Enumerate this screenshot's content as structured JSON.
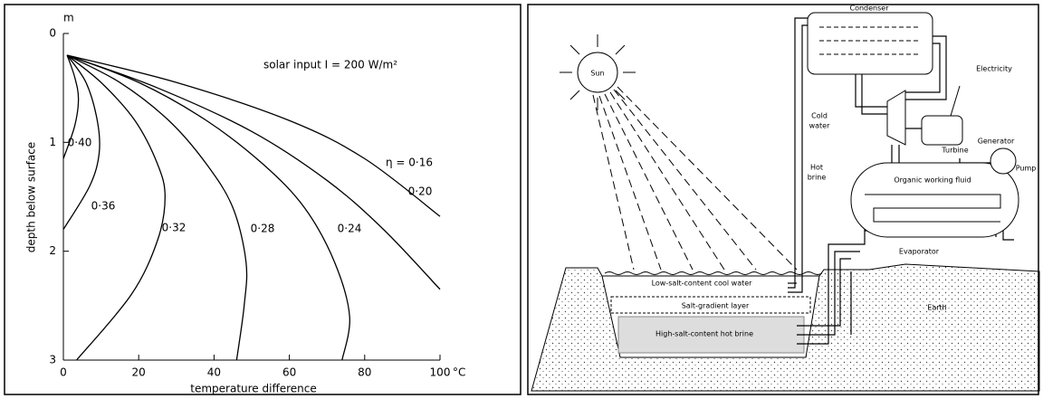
{
  "chart_data": {
    "type": "line",
    "annotation": "solar input I = 200 W/m²",
    "y_unit": "m",
    "x_unit": "°C",
    "xlabel": "temperature difference",
    "ylabel": "depth below surface",
    "xlim": [
      0,
      100
    ],
    "ylim": [
      3,
      0
    ],
    "xticks": [
      0,
      20,
      40,
      60,
      80,
      100
    ],
    "yticks": [
      0,
      1,
      2,
      3
    ],
    "color": "#000000",
    "series": [
      {
        "name": "0·40",
        "x": [
          1,
          3,
          4,
          3,
          0
        ],
        "values": [
          0.2,
          0.4,
          0.6,
          0.85,
          1.15
        ]
      },
      {
        "name": "0·36",
        "x": [
          1,
          6,
          9,
          9.5,
          7,
          0
        ],
        "values": [
          0.2,
          0.45,
          0.8,
          1.1,
          1.4,
          1.8
        ]
      },
      {
        "name": "0·32",
        "x": [
          1,
          10,
          19,
          25,
          27,
          25,
          18,
          3.5
        ],
        "values": [
          0.2,
          0.45,
          0.8,
          1.2,
          1.5,
          1.9,
          2.4,
          3
        ]
      },
      {
        "name": "0·28",
        "x": [
          1,
          15,
          28,
          38,
          45,
          48.5,
          48,
          46
        ],
        "values": [
          0.2,
          0.45,
          0.8,
          1.2,
          1.6,
          2.1,
          2.5,
          3
        ]
      },
      {
        "name": "0·24",
        "x": [
          1,
          20,
          38,
          53,
          64,
          72,
          76,
          74
        ],
        "values": [
          0.2,
          0.45,
          0.8,
          1.2,
          1.6,
          2.1,
          2.6,
          3
        ]
      },
      {
        "name": "0·20",
        "x": [
          1,
          25,
          50,
          70,
          85,
          100
        ],
        "values": [
          0.2,
          0.5,
          0.9,
          1.35,
          1.8,
          2.35
        ]
      },
      {
        "name": "η = 0·16",
        "x": [
          1,
          30,
          60,
          80,
          100
        ],
        "values": [
          0.2,
          0.45,
          0.8,
          1.15,
          1.68
        ]
      }
    ]
  },
  "diagram": {
    "labels": [
      "Condenser",
      "Electricity",
      "Generator",
      "Turbine",
      "Pump",
      "Sun",
      "Cold",
      "water",
      "Hot",
      "brine",
      "Organic working fluid",
      "Evaporator",
      "Low-salt-content cool water",
      "Salt-gradient layer",
      "High-salt-content hot brine",
      "Earth"
    ]
  }
}
